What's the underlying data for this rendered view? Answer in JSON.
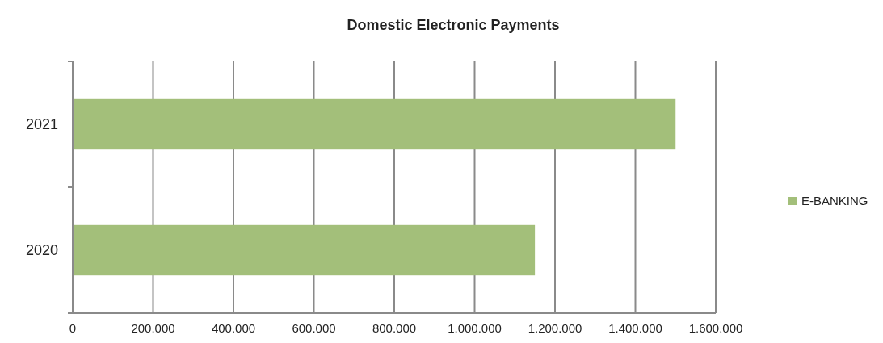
{
  "chart_data": {
    "type": "bar",
    "orientation": "horizontal",
    "title": "Domestic Electronic Payments",
    "categories": [
      "2021",
      "2020"
    ],
    "series": [
      {
        "name": "E-BANKING",
        "color": "#a3bf7a",
        "values": [
          1500000,
          1150000
        ]
      }
    ],
    "xlim": [
      0,
      1600000
    ],
    "xticks": [
      {
        "value": 0,
        "label": "0"
      },
      {
        "value": 200000,
        "label": "200.000"
      },
      {
        "value": 400000,
        "label": "400.000"
      },
      {
        "value": 600000,
        "label": "600.000"
      },
      {
        "value": 800000,
        "label": "800.000"
      },
      {
        "value": 1000000,
        "label": "1.000.000"
      },
      {
        "value": 1200000,
        "label": "1.200.000"
      },
      {
        "value": 1400000,
        "label": "1.400.000"
      },
      {
        "value": 1600000,
        "label": "1.600.000"
      }
    ],
    "grid": "x",
    "legend": "right"
  }
}
